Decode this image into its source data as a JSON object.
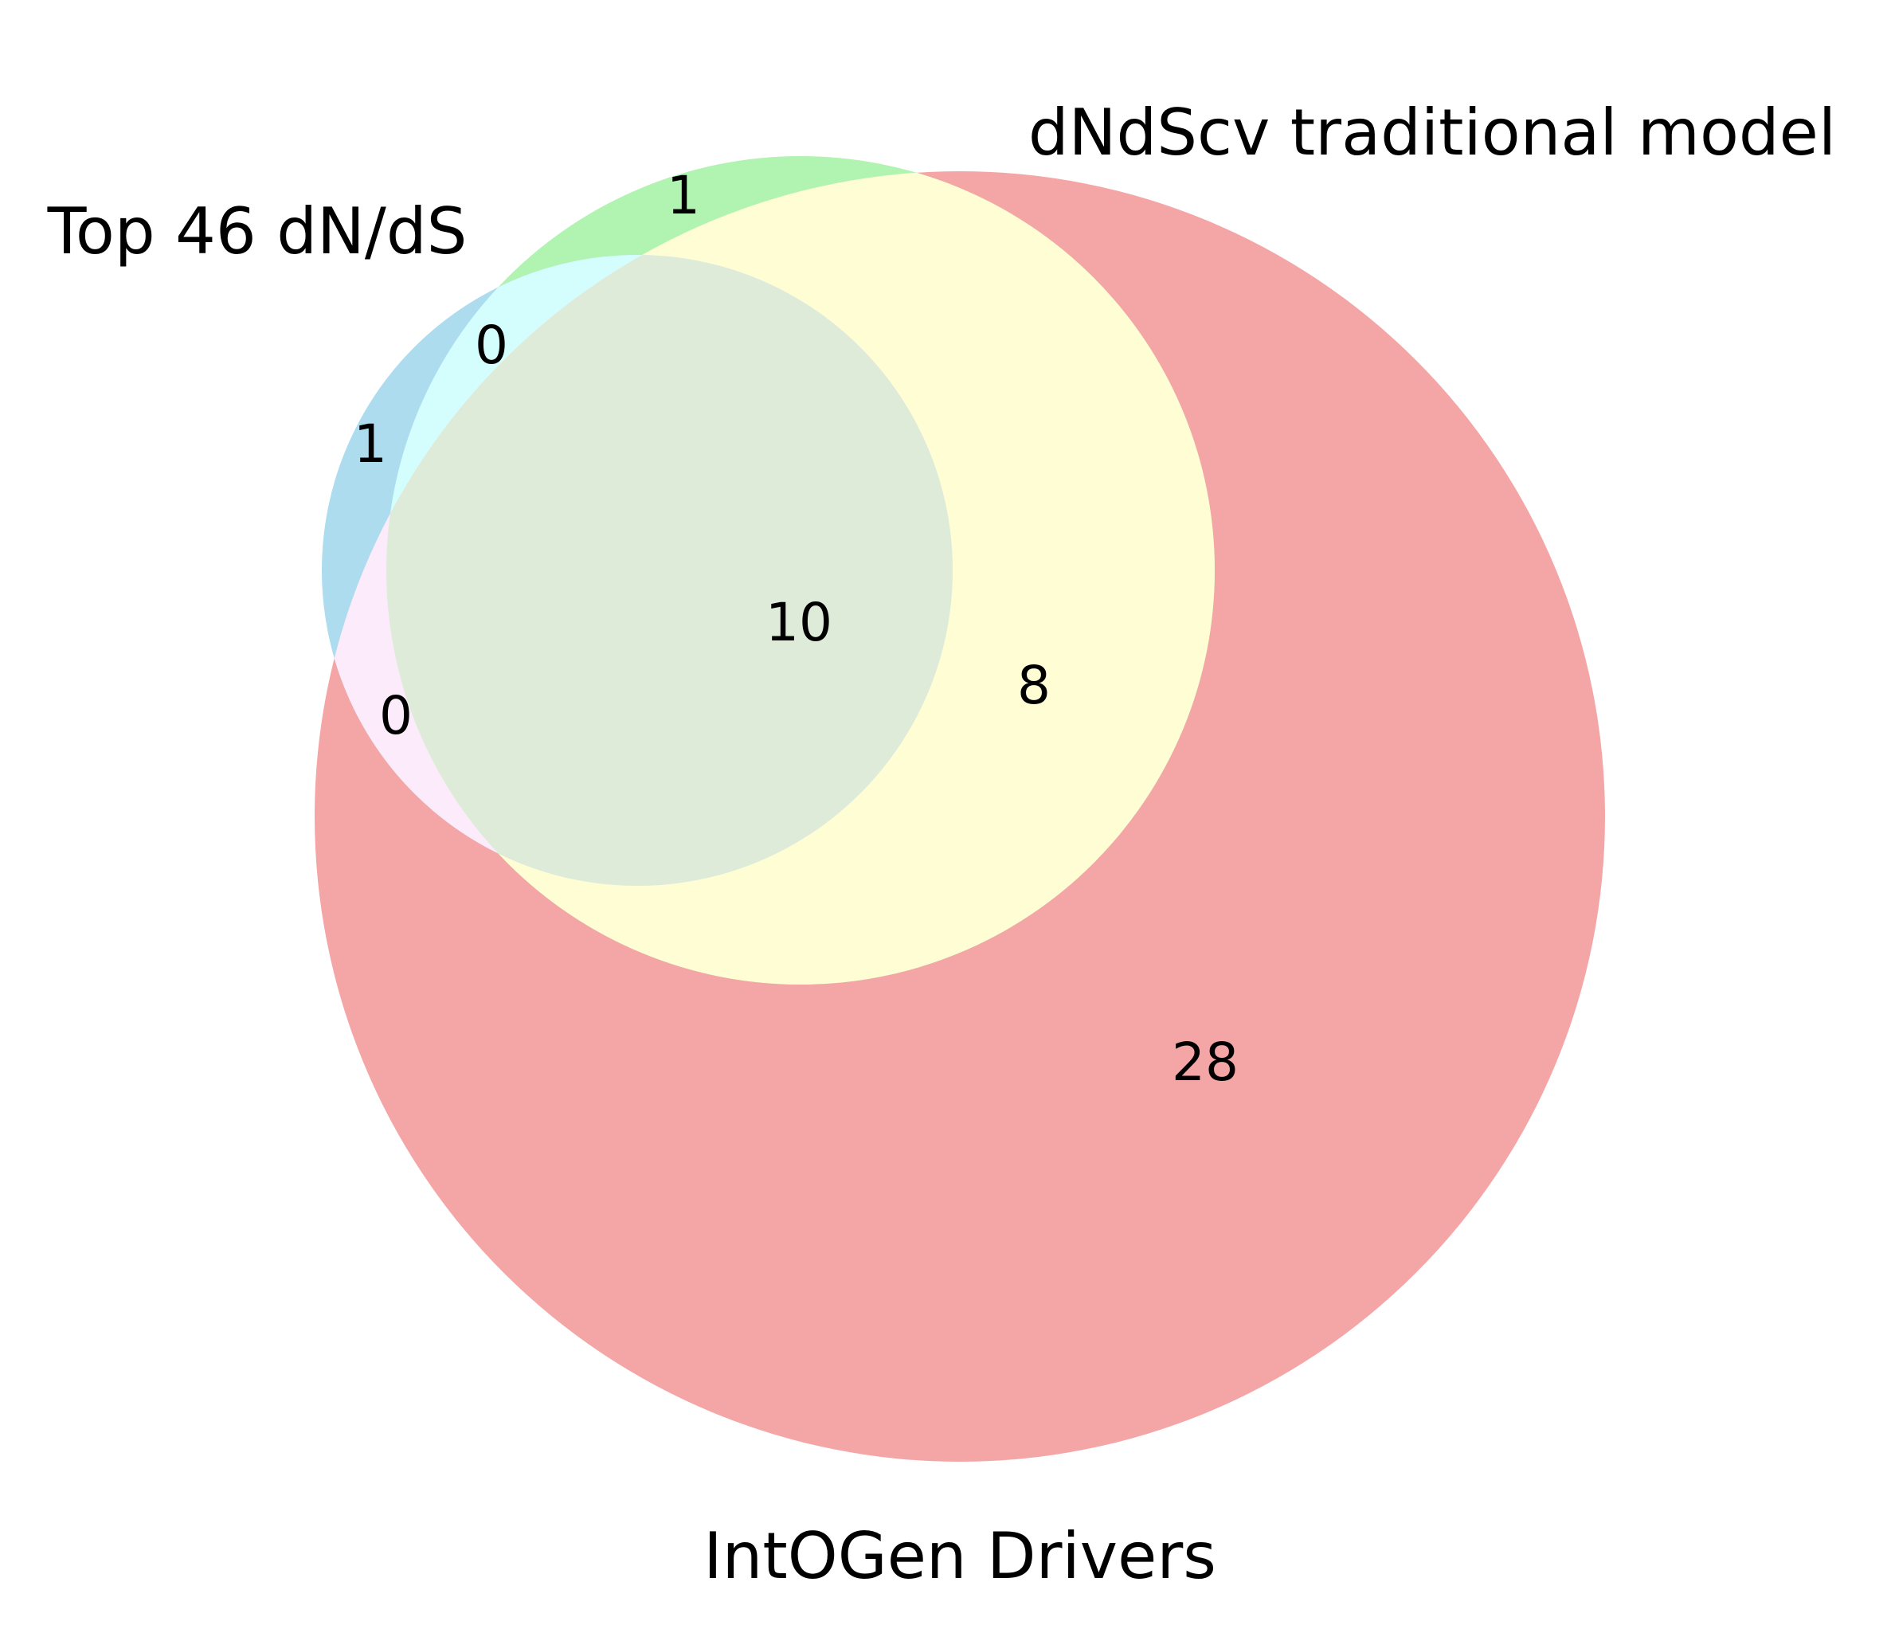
{
  "diagram": {
    "type": "venn3",
    "sets": [
      {
        "key": "top46",
        "label": "Top 46 dN/dS",
        "color": "#ADDCEE"
      },
      {
        "key": "dndscv",
        "label": "dNdScv traditional model",
        "color": "#B1F3B1"
      },
      {
        "key": "intogen",
        "label": "IntOGen Drivers",
        "color": "#F4A6A6"
      }
    ],
    "regions": {
      "top46_only": "1",
      "dndscv_only": "1",
      "intogen_only": "28",
      "top46_dndscv": "0",
      "top46_intogen": "0",
      "dndscv_intogen": "8",
      "all_three": "10"
    },
    "overlap_colors": {
      "top46_dndscv": "#D4FEFD",
      "top46_intogen": "#FCEBFB",
      "dndscv_intogen": "#FEFDD3",
      "all_three": "#DEEBD9"
    }
  }
}
